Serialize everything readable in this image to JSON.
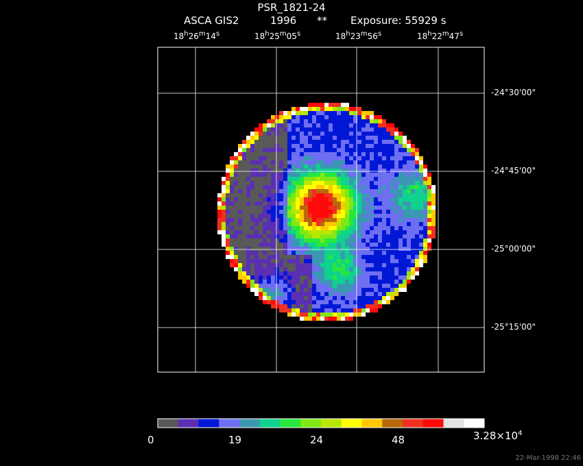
{
  "header": {
    "object": "PSR_1821-24",
    "instrument": "ASCA GIS2",
    "year": "1996",
    "flag": "**",
    "exposure": "Exposure: 55929 s"
  },
  "ra_ticks": [
    {
      "h": "18",
      "m": "26",
      "s": "14"
    },
    {
      "h": "18",
      "m": "25",
      "s": "05"
    },
    {
      "h": "18",
      "m": "23",
      "s": "56"
    },
    {
      "h": "18",
      "m": "22",
      "s": "47"
    }
  ],
  "dec_ticks": [
    "-24°30'00\"",
    "-24°45'00\"",
    "-25°00'00\"",
    "-25°15'00\""
  ],
  "colorbar": {
    "colors": [
      "#595959",
      "#5a2fb4",
      "#0018d6",
      "#6e6ef2",
      "#3b98b2",
      "#0fd28f",
      "#27e83c",
      "#7fe815",
      "#b8e700",
      "#ffff00",
      "#ffc800",
      "#b8690a",
      "#f03020",
      "#ff0a0a",
      "#e4e4e4",
      "#ffffff"
    ],
    "labels": [
      "0",
      "19",
      "24",
      "48"
    ],
    "max_label": {
      "mantissa": "3.28×10",
      "exponent": "4"
    }
  },
  "timestamp": "22-Mar-1998 22:46"
}
